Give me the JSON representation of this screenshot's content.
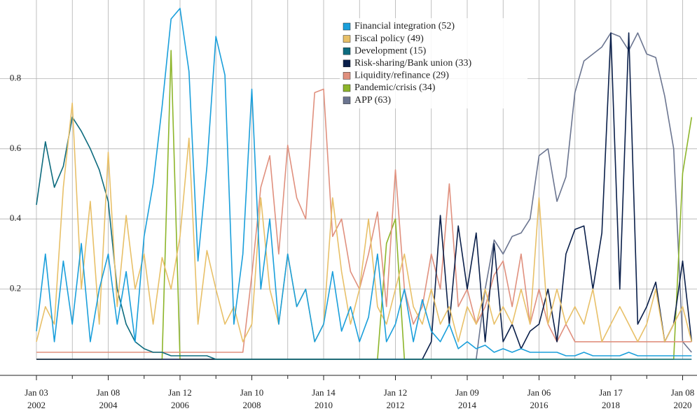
{
  "chart_data": {
    "type": "line",
    "x": [
      2002.0,
      2002.25,
      2002.5,
      2002.75,
      2003.0,
      2003.25,
      2003.5,
      2003.75,
      2004.0,
      2004.25,
      2004.5,
      2004.75,
      2005.0,
      2005.25,
      2005.5,
      2005.75,
      2006.0,
      2006.25,
      2006.5,
      2006.75,
      2007.0,
      2007.25,
      2007.5,
      2007.75,
      2008.0,
      2008.25,
      2008.5,
      2008.75,
      2009.0,
      2009.25,
      2009.5,
      2009.75,
      2010.0,
      2010.25,
      2010.5,
      2010.75,
      2011.0,
      2011.25,
      2011.5,
      2011.75,
      2012.0,
      2012.25,
      2012.5,
      2012.75,
      2013.0,
      2013.25,
      2013.5,
      2013.75,
      2014.0,
      2014.25,
      2014.5,
      2014.75,
      2015.0,
      2015.25,
      2015.5,
      2015.75,
      2016.0,
      2016.25,
      2016.5,
      2016.75,
      2017.0,
      2017.25,
      2017.5,
      2017.75,
      2018.0,
      2018.25,
      2018.5,
      2018.75,
      2019.0,
      2019.25,
      2019.5,
      2019.75,
      2020.0,
      2020.25
    ],
    "series": [
      {
        "name": "Financial integration (52)",
        "color": "#1a9fdb",
        "values": [
          0.08,
          0.3,
          0.05,
          0.28,
          0.1,
          0.33,
          0.05,
          0.2,
          0.3,
          0.1,
          0.25,
          0.05,
          0.35,
          0.5,
          0.72,
          0.97,
          1.0,
          0.82,
          0.28,
          0.55,
          0.92,
          0.81,
          0.1,
          0.3,
          0.77,
          0.2,
          0.4,
          0.1,
          0.3,
          0.15,
          0.2,
          0.05,
          0.1,
          0.25,
          0.08,
          0.15,
          0.05,
          0.12,
          0.3,
          0.05,
          0.1,
          0.2,
          0.05,
          0.17,
          0.08,
          0.05,
          0.1,
          0.03,
          0.05,
          0.03,
          0.04,
          0.02,
          0.03,
          0.02,
          0.03,
          0.02,
          0.02,
          0.02,
          0.02,
          0.01,
          0.01,
          0.02,
          0.01,
          0.01,
          0.01,
          0.01,
          0.02,
          0.01,
          0.01,
          0.01,
          0.01,
          0.01,
          0.01,
          0.01
        ]
      },
      {
        "name": "Fiscal policy (49)",
        "color": "#e8c068",
        "values": [
          0.05,
          0.15,
          0.1,
          0.49,
          0.73,
          0.2,
          0.45,
          0.1,
          0.59,
          0.15,
          0.41,
          0.2,
          0.3,
          0.1,
          0.29,
          0.2,
          0.35,
          0.63,
          0.1,
          0.31,
          0.2,
          0.1,
          0.15,
          0.05,
          0.1,
          0.46,
          0.2,
          0.1,
          0.3,
          0.15,
          0.2,
          0.05,
          0.1,
          0.46,
          0.25,
          0.1,
          0.2,
          0.4,
          0.15,
          0.1,
          0.2,
          0.3,
          0.15,
          0.1,
          0.2,
          0.1,
          0.15,
          0.05,
          0.15,
          0.1,
          0.2,
          0.1,
          0.15,
          0.1,
          0.2,
          0.1,
          0.46,
          0.1,
          0.2,
          0.1,
          0.15,
          0.1,
          0.2,
          0.05,
          0.1,
          0.15,
          0.1,
          0.05,
          0.1,
          0.2,
          0.05,
          0.1,
          0.15,
          0.05
        ]
      },
      {
        "name": "Development (15)",
        "color": "#0d6b7e",
        "values": [
          0.44,
          0.62,
          0.49,
          0.55,
          0.69,
          0.65,
          0.6,
          0.54,
          0.45,
          0.2,
          0.1,
          0.05,
          0.03,
          0.02,
          0.02,
          0.01,
          0.01,
          0.01,
          0.01,
          0.01,
          0,
          0,
          0,
          0,
          0,
          0,
          0,
          0,
          0,
          0,
          0,
          0,
          0,
          0,
          0,
          0,
          0,
          0,
          0,
          0,
          0,
          0,
          0,
          0,
          0,
          0,
          0,
          0,
          0,
          0,
          0,
          0,
          0,
          0,
          0,
          0,
          0,
          0,
          0,
          0,
          0,
          0,
          0,
          0,
          0,
          0,
          0,
          0,
          0,
          0,
          0,
          0,
          0,
          0
        ]
      },
      {
        "name": "Risk-sharing/Bank union (33)",
        "color": "#0a1f4a",
        "values": [
          0,
          0,
          0,
          0,
          0,
          0,
          0,
          0,
          0,
          0,
          0,
          0,
          0,
          0,
          0,
          0,
          0,
          0,
          0,
          0,
          0,
          0,
          0,
          0,
          0,
          0,
          0,
          0,
          0,
          0,
          0,
          0,
          0,
          0,
          0,
          0,
          0,
          0,
          0,
          0,
          0,
          0,
          0,
          0,
          0.05,
          0.41,
          0.1,
          0.38,
          0.2,
          0.36,
          0.05,
          0.33,
          0.05,
          0.1,
          0.03,
          0.08,
          0.1,
          0.2,
          0.05,
          0.3,
          0.37,
          0.38,
          0.2,
          0.36,
          0.93,
          0.2,
          0.93,
          0.1,
          0.15,
          0.22,
          0.05,
          0.1,
          0.28,
          0.05
        ]
      },
      {
        "name": "Liquidity/refinance (29)",
        "color": "#e0907e",
        "values": [
          0.02,
          0.02,
          0.02,
          0.02,
          0.02,
          0.02,
          0.02,
          0.02,
          0.02,
          0.02,
          0.02,
          0.02,
          0.02,
          0.02,
          0.02,
          0.02,
          0.02,
          0.02,
          0.02,
          0.02,
          0.02,
          0.02,
          0.02,
          0.02,
          0.24,
          0.49,
          0.58,
          0.3,
          0.61,
          0.46,
          0.4,
          0.76,
          0.77,
          0.35,
          0.4,
          0.25,
          0.2,
          0.3,
          0.42,
          0.15,
          0.54,
          0.2,
          0.1,
          0.15,
          0.3,
          0.2,
          0.5,
          0.15,
          0.2,
          0.1,
          0.15,
          0.24,
          0.28,
          0.15,
          0.3,
          0.1,
          0.2,
          0.1,
          0.05,
          0.1,
          0.05,
          0.05,
          0.05,
          0.05,
          0.05,
          0.05,
          0.05,
          0.05,
          0.05,
          0.05,
          0.05,
          0.05,
          0.05,
          0.05
        ]
      },
      {
        "name": "Pandemic/crisis (34)",
        "color": "#8db52a",
        "values": [
          0,
          0,
          0,
          0,
          0,
          0,
          0,
          0,
          0,
          0,
          0,
          0,
          0,
          0,
          0,
          0.88,
          0,
          0,
          0,
          0,
          0,
          0,
          0,
          0,
          0,
          0,
          0,
          0,
          0,
          0,
          0,
          0,
          0,
          0,
          0,
          0,
          0,
          0,
          0,
          0.33,
          0.4,
          0,
          0,
          0,
          0,
          0,
          0,
          0,
          0,
          0,
          0,
          0,
          0,
          0,
          0,
          0,
          0,
          0,
          0,
          0,
          0,
          0,
          0,
          0,
          0,
          0,
          0,
          0,
          0,
          0,
          0,
          0,
          0.53,
          0.69
        ]
      },
      {
        "name": "APP (63)",
        "color": "#6b7590",
        "values": [
          0,
          0,
          0,
          0,
          0,
          0,
          0,
          0,
          0,
          0,
          0,
          0,
          0,
          0,
          0,
          0,
          0,
          0,
          0,
          0,
          0,
          0,
          0,
          0,
          0,
          0,
          0,
          0,
          0,
          0,
          0,
          0,
          0,
          0,
          0,
          0,
          0,
          0,
          0,
          0,
          0,
          0,
          0,
          0,
          0,
          0,
          0,
          0,
          0,
          0,
          0.2,
          0.34,
          0.3,
          0.35,
          0.36,
          0.4,
          0.58,
          0.6,
          0.45,
          0.52,
          0.76,
          0.85,
          0.87,
          0.89,
          0.93,
          0.92,
          0.88,
          0.93,
          0.87,
          0.86,
          0.75,
          0.6,
          0.05,
          0.02
        ]
      }
    ],
    "xlim": [
      2002.0,
      2020.4
    ],
    "xticks": [
      {
        "value": 2002,
        "label": "Jan 03 2002"
      },
      {
        "value": 2004,
        "label": "Jan 08 2004"
      },
      {
        "value": 2006,
        "label": "Jan 12 2006"
      },
      {
        "value": 2008,
        "label": "Jan 10 2008"
      },
      {
        "value": 2010,
        "label": "Jan 14 2010"
      },
      {
        "value": 2012,
        "label": "Jan 12 2012"
      },
      {
        "value": 2014,
        "label": "Jan 09 2014"
      },
      {
        "value": 2016,
        "label": "Jan 06 2016"
      },
      {
        "value": 2018,
        "label": "Jan 17 2018"
      },
      {
        "value": 2020,
        "label": "Jan 08 2020"
      }
    ],
    "xminor_ticks": [
      2003,
      2005,
      2007,
      2009,
      2011,
      2013,
      2015,
      2017,
      2019
    ],
    "ylim": [
      0,
      1.0
    ],
    "yticks": [
      0.2,
      0.4,
      0.6,
      0.8
    ],
    "grid": true,
    "legend": "top"
  }
}
